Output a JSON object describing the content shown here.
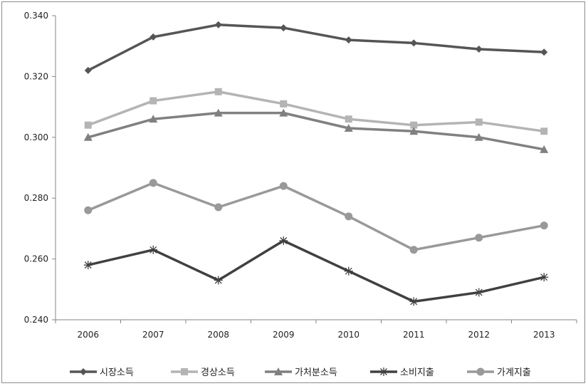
{
  "chart_data": {
    "type": "line",
    "x": [
      "2006",
      "2007",
      "2008",
      "2009",
      "2010",
      "2011",
      "2012",
      "2013"
    ],
    "ylim": [
      0.24,
      0.34
    ],
    "yticks": [
      "0.240",
      "0.260",
      "0.280",
      "0.300",
      "0.320",
      "0.340"
    ],
    "grid": false,
    "legend_position": "bottom",
    "series": [
      {
        "name": "시장소득",
        "color": "#555555",
        "marker": "diamond",
        "values": [
          0.322,
          0.333,
          0.337,
          0.336,
          0.332,
          0.331,
          0.329,
          0.328
        ]
      },
      {
        "name": "경상소득",
        "color": "#b4b4b4",
        "marker": "square",
        "values": [
          0.304,
          0.312,
          0.315,
          0.311,
          0.306,
          0.304,
          0.305,
          0.302
        ]
      },
      {
        "name": "가처분소득",
        "color": "#808080",
        "marker": "triangle",
        "values": [
          0.3,
          0.306,
          0.308,
          0.308,
          0.303,
          0.302,
          0.3,
          0.296
        ]
      },
      {
        "name": "소비지출",
        "color": "#404040",
        "marker": "star",
        "values": [
          0.258,
          0.263,
          0.253,
          0.266,
          0.256,
          0.246,
          0.249,
          0.254
        ]
      },
      {
        "name": "가계지출",
        "color": "#999999",
        "marker": "circle",
        "values": [
          0.276,
          0.285,
          0.277,
          0.284,
          0.274,
          0.263,
          0.267,
          0.271
        ]
      }
    ]
  }
}
